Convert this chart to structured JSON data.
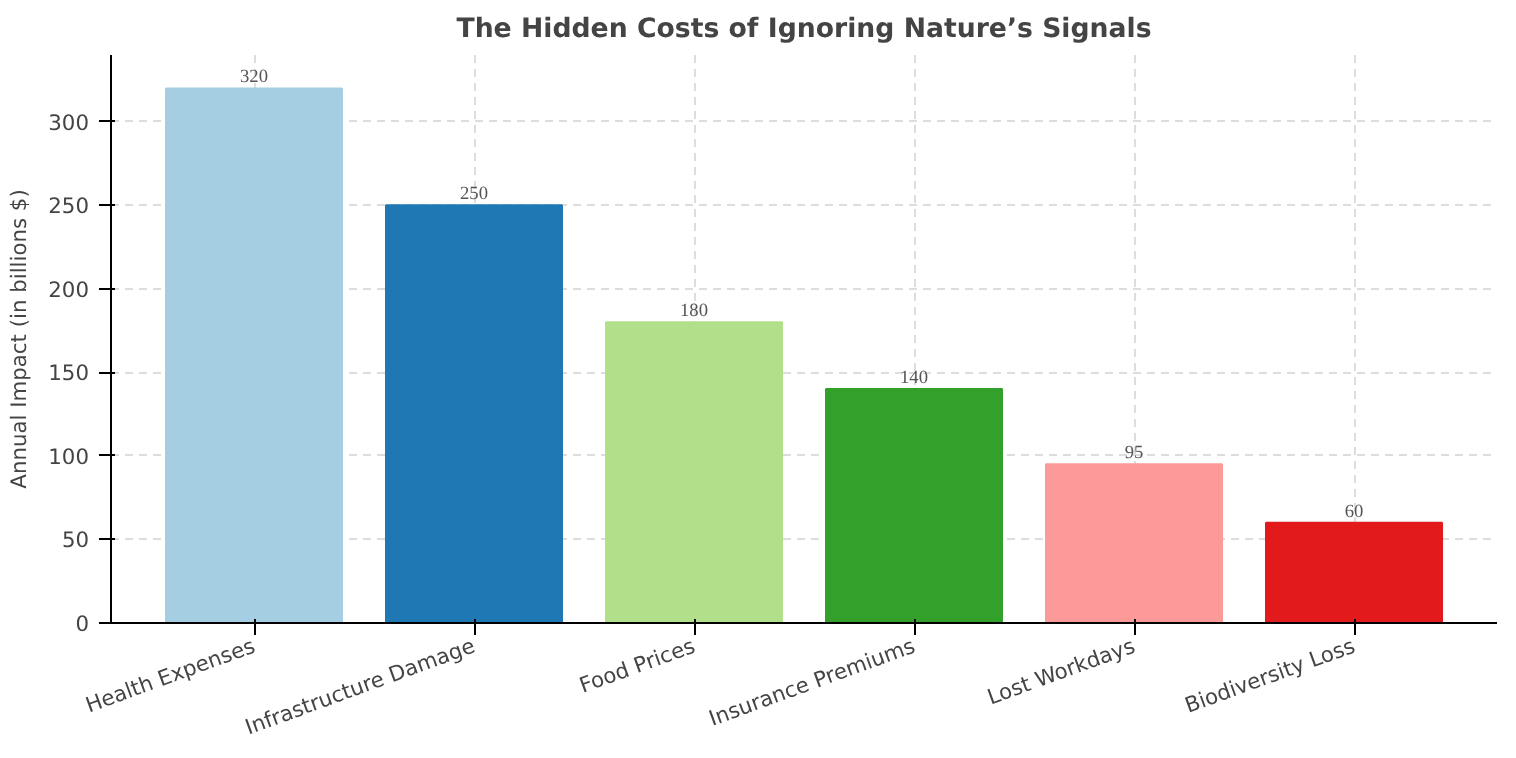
{
  "chart_data": {
    "type": "bar",
    "title": "The Hidden Costs of Ignoring Nature’s Signals",
    "ylabel": "Annual Impact (in billions $)",
    "categories": [
      "Health Expenses",
      "Infrastructure Damage",
      "Food Prices",
      "Insurance Premiums",
      "Lost Workdays",
      "Biodiversity Loss"
    ],
    "values": [
      320,
      250,
      180,
      140,
      95,
      60
    ],
    "colors": [
      "#a6cee3",
      "#1f78b4",
      "#b2df8a",
      "#33a02c",
      "#fb9a99",
      "#e31a1c"
    ],
    "ylim": [
      0,
      340
    ],
    "yticks": [
      0,
      50,
      100,
      150,
      200,
      250,
      300
    ],
    "grid": true,
    "data_labels": true
  }
}
